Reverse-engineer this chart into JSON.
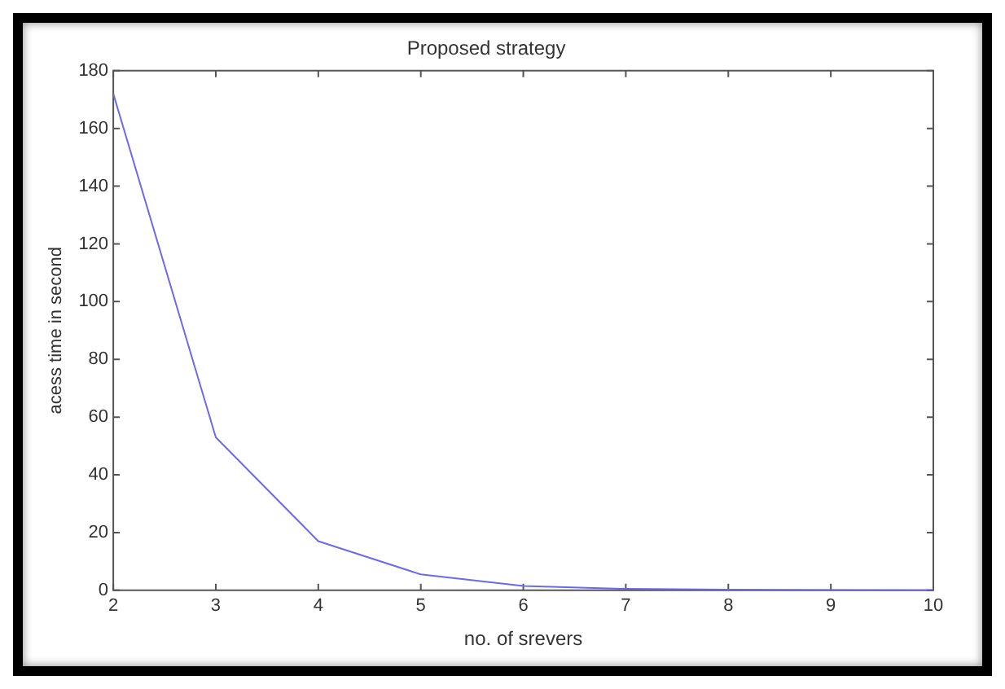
{
  "chart_data": {
    "type": "line",
    "title": "Proposed strategy",
    "xlabel": "no. of srevers",
    "ylabel": "acess time in second",
    "x": [
      2,
      3,
      4,
      5,
      6,
      7,
      8,
      9,
      10
    ],
    "series": [
      {
        "color": "#6a6af0",
        "values": [
          172,
          53,
          17,
          5.5,
          1.5,
          0.5,
          0.2,
          0.1,
          0
        ]
      }
    ],
    "xlim": [
      2,
      10
    ],
    "xticks": [
      2,
      3,
      4,
      5,
      6,
      7,
      8,
      9,
      10
    ],
    "ylim": [
      0,
      180
    ],
    "yticks": [
      0,
      20,
      40,
      60,
      80,
      100,
      120,
      140,
      160,
      180
    ],
    "grid": false,
    "legend": false,
    "marker": "none",
    "line_style": "solid"
  }
}
